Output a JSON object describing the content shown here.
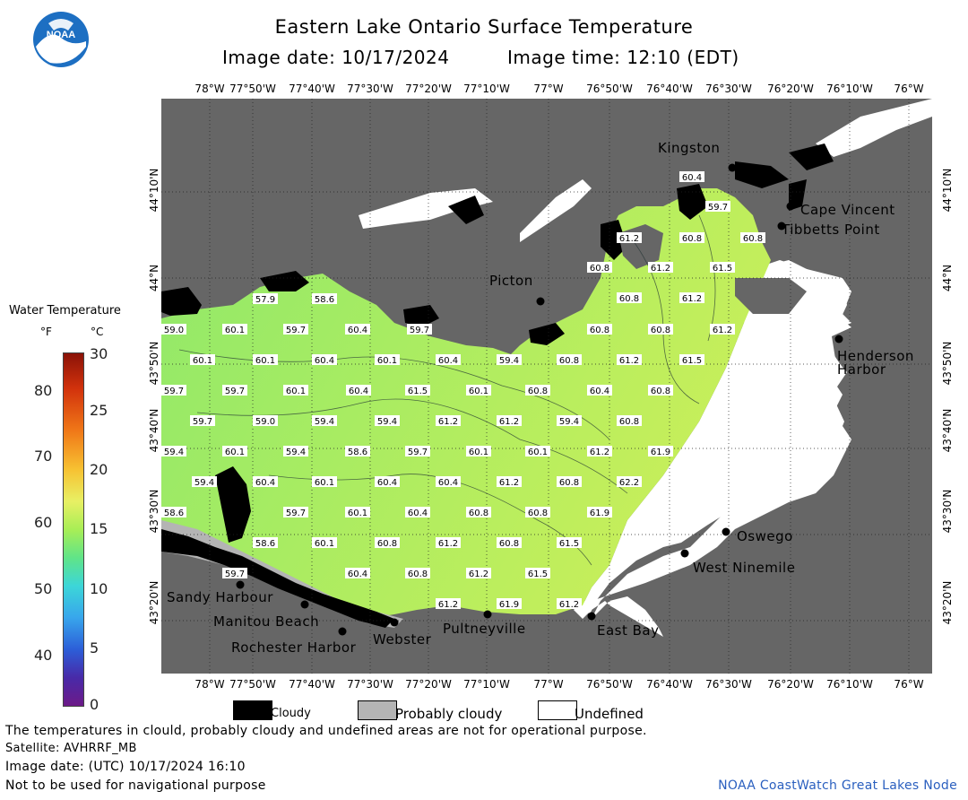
{
  "header": {
    "title": "Eastern Lake Ontario Surface Temperature",
    "image_date": "Image date: 10/17/2024",
    "image_time": "Image time: 12:10 (EDT)"
  },
  "logo": {
    "text": "NOAA"
  },
  "map": {
    "lon_labels": [
      "78°W",
      "77°50'W",
      "77°40'W",
      "77°30'W",
      "77°20'W",
      "77°10'W",
      "77°W",
      "76°50'W",
      "76°40'W",
      "76°30'W",
      "76°20'W",
      "76°10'W",
      "76°W"
    ],
    "lat_labels": [
      "44°10'N",
      "44°N",
      "43°50'N",
      "43°40'N",
      "43°30'N",
      "43°20'N"
    ],
    "places": [
      {
        "name": "Kingston"
      },
      {
        "name": "Cape Vincent"
      },
      {
        "name": "Tibbetts Point"
      },
      {
        "name": "Picton"
      },
      {
        "name": "Henderson"
      },
      {
        "name": "Harbor"
      },
      {
        "name": "Oswego"
      },
      {
        "name": "West Ninemile"
      },
      {
        "name": "Sandy Harbour"
      },
      {
        "name": "Manitou Beach"
      },
      {
        "name": "Rochester Harbor"
      },
      {
        "name": "Webster"
      },
      {
        "name": "Pultneyville"
      },
      {
        "name": "East Bay"
      }
    ],
    "temps": [
      {
        "v": "60.4"
      },
      {
        "v": "59.7"
      },
      {
        "v": "61.2"
      },
      {
        "v": "60.8"
      },
      {
        "v": "60.8"
      },
      {
        "v": "60.8"
      },
      {
        "v": "61.2"
      },
      {
        "v": "61.5"
      },
      {
        "v": "57.9"
      },
      {
        "v": "58.6"
      },
      {
        "v": "60.8"
      },
      {
        "v": "61.2"
      },
      {
        "v": "59.0"
      },
      {
        "v": "60.1"
      },
      {
        "v": "59.7"
      },
      {
        "v": "60.4"
      },
      {
        "v": "59.7"
      },
      {
        "v": "60.8"
      },
      {
        "v": "60.8"
      },
      {
        "v": "61.2"
      },
      {
        "v": "60.1"
      },
      {
        "v": "60.1"
      },
      {
        "v": "60.4"
      },
      {
        "v": "60.1"
      },
      {
        "v": "60.4"
      },
      {
        "v": "59.4"
      },
      {
        "v": "60.8"
      },
      {
        "v": "61.2"
      },
      {
        "v": "61.5"
      },
      {
        "v": "59.7"
      },
      {
        "v": "59.7"
      },
      {
        "v": "60.1"
      },
      {
        "v": "60.4"
      },
      {
        "v": "61.5"
      },
      {
        "v": "60.1"
      },
      {
        "v": "60.8"
      },
      {
        "v": "60.4"
      },
      {
        "v": "60.8"
      },
      {
        "v": "59.7"
      },
      {
        "v": "59.0"
      },
      {
        "v": "59.4"
      },
      {
        "v": "59.4"
      },
      {
        "v": "61.2"
      },
      {
        "v": "61.2"
      },
      {
        "v": "59.4"
      },
      {
        "v": "60.8"
      },
      {
        "v": "59.4"
      },
      {
        "v": "60.1"
      },
      {
        "v": "59.4"
      },
      {
        "v": "58.6"
      },
      {
        "v": "59.7"
      },
      {
        "v": "60.1"
      },
      {
        "v": "60.1"
      },
      {
        "v": "61.2"
      },
      {
        "v": "61.9"
      },
      {
        "v": "59.4"
      },
      {
        "v": "60.4"
      },
      {
        "v": "60.1"
      },
      {
        "v": "60.4"
      },
      {
        "v": "60.4"
      },
      {
        "v": "61.2"
      },
      {
        "v": "60.8"
      },
      {
        "v": "62.2"
      },
      {
        "v": "58.6"
      },
      {
        "v": "59.7"
      },
      {
        "v": "60.1"
      },
      {
        "v": "60.4"
      },
      {
        "v": "60.8"
      },
      {
        "v": "60.8"
      },
      {
        "v": "61.9"
      },
      {
        "v": "58.6"
      },
      {
        "v": "60.1"
      },
      {
        "v": "60.8"
      },
      {
        "v": "61.2"
      },
      {
        "v": "60.8"
      },
      {
        "v": "61.5"
      },
      {
        "v": "59.7"
      },
      {
        "v": "60.4"
      },
      {
        "v": "60.8"
      },
      {
        "v": "61.2"
      },
      {
        "v": "61.5"
      },
      {
        "v": "61.2"
      },
      {
        "v": "61.9"
      },
      {
        "v": "61.2"
      }
    ]
  },
  "legend": {
    "title": "Water Temperature",
    "unit_f": "°F",
    "unit_c": "°C",
    "f_ticks": [
      "80",
      "70",
      "60",
      "50",
      "40"
    ],
    "c_ticks": [
      "30",
      "25",
      "20",
      "15",
      "10",
      "5",
      "0"
    ]
  },
  "key": {
    "cloudy": "Cloudy",
    "probably_cloudy": "Probably cloudy",
    "undefined": "Undefined"
  },
  "footer": {
    "line1": "The temperatures in clould, probably cloudy and undefined areas are not for operational purpose.",
    "line2": "Satellite: AVHRRF_MB",
    "line3": "Image date: (UTC) 10/17/2024  16:10",
    "line4": "Not to be used for navigational purpose",
    "credit": "NOAA CoastWatch Great Lakes Node"
  },
  "colors": {
    "land": "#666666",
    "cloudy": "#000000",
    "probably_cloudy": "#b4b4b4",
    "undefined": "#ffffff",
    "water_warm": "#c8ef5a",
    "water_cool": "#8fe86a",
    "credit": "#2a5fbf"
  }
}
